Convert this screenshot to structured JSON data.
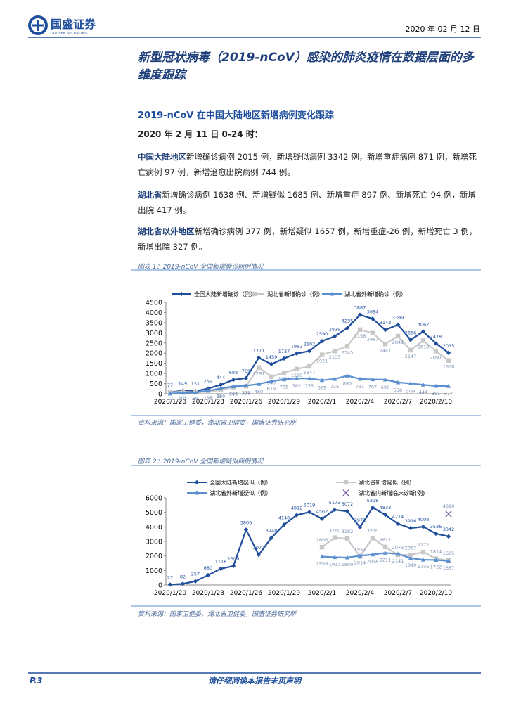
{
  "header": {
    "logo_cn": "国盛证券",
    "logo_en": "GUOSEN SECURITIES",
    "date": "2020 年 02 月 12 日"
  },
  "body": {
    "title": "新型冠状病毒（2019-nCoV）感染的肺炎疫情在数据层面的多维度跟踪",
    "section": "2019-nCoV 在中国大陆地区新增病例变化跟踪",
    "date_line": "2020 年 2 月 11 日 0-24 时：",
    "paragraphs": [
      {
        "lead": "中国大陆地区",
        "text": "新增确诊病例 2015 例，新增疑似病例 3342 例，新增重症病例 871 例，新增死亡病例 97 例，新增治愈出院病例 744 例。"
      },
      {
        "lead": "湖北省",
        "text": "新增确诊病例 1638 例、新增疑似 1685 例、新增重症 897 例、新增死亡 94 例，新增出院 417 例。"
      },
      {
        "lead": "湖北省以外地区",
        "text": "新增确诊病例 377 例，新增疑似 1657 例，新增重症-26 例，新增死亡 3 例，新增出院 327 例。"
      }
    ]
  },
  "chart_data": [
    {
      "type": "line",
      "title": "图表 1：2019-nCoV 全国新增确诊病例情况",
      "source": "资料来源：国家卫健委，湖北省卫健委，国盛证券研究所",
      "categories": [
        "2020/1/20",
        null,
        null,
        "2020/1/23",
        null,
        null,
        "2020/1/26",
        null,
        null,
        "2020/1/29",
        null,
        null,
        "2020/2/1",
        null,
        null,
        "2020/2/4",
        null,
        null,
        "2020/2/7",
        null,
        null,
        "2020/2/10",
        null
      ],
      "ylim": [
        0,
        4500
      ],
      "yticks": [
        0,
        500,
        1000,
        1500,
        2000,
        2500,
        3000,
        3500,
        4000,
        4500
      ],
      "grid": false,
      "series": [
        {
          "name": "全国大陆新增确诊（例）",
          "color": "#1f4e9c",
          "marker": "diamond",
          "show_line": true,
          "values": [
            77,
            149,
            131,
            259,
            444,
            688,
            769,
            1771,
            1459,
            1737,
            1982,
            2102,
            2590,
            2829,
            3235,
            3887,
            3694,
            3143,
            3399,
            2656,
            3062,
            2478,
            2015
          ]
        },
        {
          "name": "湖北省新增确诊（例）",
          "color": "#c8c8c8",
          "marker": "square",
          "show_line": true,
          "values": [
            72,
            105,
            69,
            105,
            180,
            323,
            371,
            1291,
            840,
            1032,
            1220,
            1347,
            1921,
            2103,
            2345,
            3156,
            2987,
            2447,
            2841,
            2147,
            2618,
            2097,
            1638
          ]
        },
        {
          "name": "湖北省外新增确诊（例）",
          "color": "#5b8fd0",
          "marker": "triangle",
          "show_line": true,
          "values": [
            5,
            44,
            62,
            154,
            264,
            365,
            398,
            480,
            619,
            705,
            762,
            755,
            669,
            726,
            890,
            731,
            707,
            696,
            558,
            509,
            444,
            381,
            377
          ]
        }
      ]
    },
    {
      "type": "line",
      "title": "图表 2：2019-nCoV 全国新增疑似病例情况",
      "source": "资料来源：国家卫健委，湖北省卫健委，国盛证券研究所",
      "categories": [
        "2020/1/20",
        null,
        null,
        "2020/1/23",
        null,
        null,
        "2020/1/26",
        null,
        null,
        "2020/1/29",
        null,
        null,
        "2020/2/1",
        null,
        null,
        "2020/2/4",
        null,
        null,
        "2020/2/7",
        null,
        null,
        "2020/2/10",
        null
      ],
      "ylim": [
        0,
        6000
      ],
      "yticks": [
        0,
        1000,
        2000,
        3000,
        4000,
        5000,
        6000
      ],
      "grid": false,
      "series": [
        {
          "name": "全国大陆新增疑似（例）",
          "color": "#1f4e9c",
          "marker": "diamond",
          "show_line": true,
          "values": [
            27,
            82,
            257,
            680,
            1118,
            1309,
            3806,
            2077,
            3248,
            4148,
            4812,
            5019,
            4562,
            5173,
            5072,
            3971,
            5328,
            4833,
            4214,
            3916,
            4008,
            3536,
            3342
          ]
        },
        {
          "name": "湖北省新增疑似（例）",
          "color": "#c8c8c8",
          "marker": "square",
          "show_line": true,
          "values": [
            null,
            null,
            null,
            null,
            null,
            null,
            null,
            null,
            null,
            null,
            null,
            null,
            2606,
            3260,
            3182,
            1957,
            3230,
            2622,
            2073,
            2067,
            2272,
            1814,
            1685
          ]
        },
        {
          "name": "湖北省外新增疑似（例）",
          "color": "#5b8fd0",
          "marker": "triangle",
          "show_line": true,
          "values": [
            null,
            null,
            null,
            null,
            null,
            null,
            null,
            null,
            null,
            null,
            null,
            null,
            1956,
            1913,
            1890,
            2014,
            2098,
            2211,
            2141,
            1849,
            1736,
            1722,
            1657
          ]
        },
        {
          "name": "湖北省内新增临床诊断(例)",
          "color": "#8064a2",
          "marker": "x",
          "show_line": false,
          "values": [
            null,
            null,
            null,
            null,
            null,
            null,
            null,
            null,
            null,
            null,
            null,
            null,
            null,
            null,
            null,
            null,
            null,
            null,
            null,
            null,
            null,
            null,
            4890
          ]
        }
      ]
    }
  ],
  "footer": {
    "page": "P.3",
    "disclaimer": "请仔细阅读本报告末页声明"
  }
}
